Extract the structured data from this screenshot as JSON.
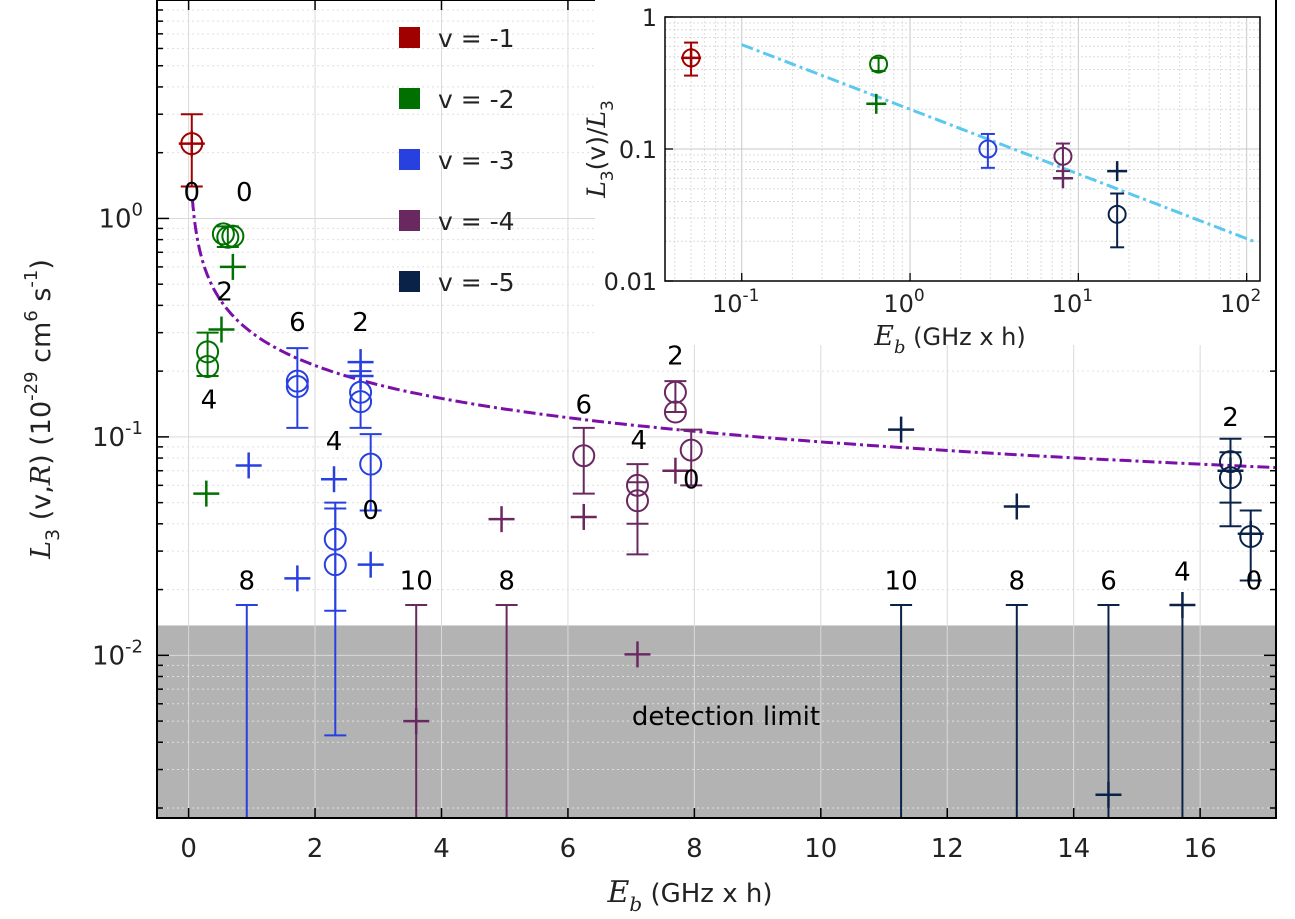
{
  "chart_data": [
    {
      "type": "scatter",
      "title": "",
      "xlabel": "E_b (GHz x h)",
      "ylabel": "L_3 (v,R) (10^-29 cm^6 s^-1)",
      "xlabel_parts": {
        "sym": "E",
        "sub": "b",
        "unit": "(GHz x h)"
      },
      "ylabel_parts": {
        "sym": "L",
        "sub": "3",
        "args": "(v,",
        "argR": "R",
        "argClose": ")",
        "unitA": "(10",
        "exp1": "-29",
        "unitB": "cm",
        "exp2": "6",
        "unitC": "s",
        "exp3": "-1",
        "unitD": ")"
      },
      "x_scale": "linear",
      "y_scale": "log",
      "xlim": [
        -0.5,
        17.2
      ],
      "ylim": [
        0.0018,
        10
      ],
      "x_ticks": [
        0,
        2,
        4,
        6,
        8,
        10,
        12,
        14,
        16
      ],
      "x_tick_labels": [
        "0",
        "2",
        "4",
        "6",
        "8",
        "10",
        "12",
        "14",
        "16"
      ],
      "y_ticks": [
        {
          "base": "10",
          "exp": "0",
          "value": 1
        },
        {
          "base": "10",
          "exp": "-1",
          "value": 0.1
        },
        {
          "base": "10",
          "exp": "-2",
          "value": 0.01
        }
      ],
      "grid": true,
      "legend": {
        "placement": "top-center",
        "entries": [
          {
            "label": "v = -1",
            "color": "#a00000"
          },
          {
            "label": "v = -2",
            "color": "#007000"
          },
          {
            "label": "v = -3",
            "color": "#2840e0"
          },
          {
            "label": "v = -4",
            "color": "#6a2860"
          },
          {
            "label": "v = -5",
            "color": "#0a2248"
          }
        ]
      },
      "shaded_region": {
        "label": "detection limit",
        "y_range": [
          0.0018,
          0.0137
        ],
        "color": "#b3b3b3"
      },
      "fit_curve": {
        "style": "dash-dot",
        "color": "#7a10a8",
        "y_at_1": 0.3,
        "exponent": -0.5,
        "x_range": [
          0.06,
          17.2
        ]
      },
      "series": [
        {
          "name": "v = -1",
          "color": "#a00000",
          "circles": [
            {
              "x": 0.05,
              "y": 2.2,
              "ylo": 1.4,
              "yhi": 3.0
            }
          ],
          "crosses": [
            {
              "x": 0.05,
              "y": 2.2
            }
          ]
        },
        {
          "name": "v = -2",
          "color": "#007000",
          "circles": [
            {
              "x": 0.62,
              "y": 0.82,
              "ylo": 0.74,
              "yhi": 0.92
            },
            {
              "x": 0.55,
              "y": 0.85
            },
            {
              "x": 0.7,
              "y": 0.83
            },
            {
              "x": 0.3,
              "y": 0.245,
              "ylo": 0.19,
              "yhi": 0.3
            },
            {
              "x": 0.3,
              "y": 0.21
            }
          ],
          "crosses": [
            {
              "x": 0.7,
              "y": 0.6
            },
            {
              "x": 0.52,
              "y": 0.31
            },
            {
              "x": 0.28,
              "y": 0.055
            }
          ]
        },
        {
          "name": "v = -3",
          "color": "#2840e0",
          "circles": [
            {
              "x": 1.72,
              "y": 0.17,
              "ylo": 0.11,
              "yhi": 0.255
            },
            {
              "x": 1.72,
              "y": 0.18
            },
            {
              "x": 2.72,
              "y": 0.16,
              "ylo": 0.11,
              "yhi": 0.2
            },
            {
              "x": 2.72,
              "y": 0.145
            },
            {
              "x": 2.88,
              "y": 0.075,
              "ylo": 0.046,
              "yhi": 0.103
            },
            {
              "x": 2.32,
              "y": 0.034,
              "ylo": 0.016,
              "yhi": 0.047
            },
            {
              "x": 2.32,
              "y": 0.026,
              "ylo": 0.0043,
              "yhi": 0.05
            },
            {
              "x": 0.92,
              "y": null,
              "ylo": 0.0018,
              "yhi": 0.017
            }
          ],
          "crosses": [
            {
              "x": 2.72,
              "y": 0.22
            },
            {
              "x": 2.72,
              "y": 0.19
            },
            {
              "x": 0.95,
              "y": 0.074
            },
            {
              "x": 2.3,
              "y": 0.064
            },
            {
              "x": 2.88,
              "y": 0.026
            },
            {
              "x": 1.72,
              "y": 0.0225
            }
          ]
        },
        {
          "name": "v = -4",
          "color": "#6a2860",
          "circles": [
            {
              "x": 7.7,
              "y": 0.16,
              "ylo": 0.13,
              "yhi": 0.18
            },
            {
              "x": 7.7,
              "y": 0.13
            },
            {
              "x": 7.95,
              "y": 0.087,
              "ylo": 0.06,
              "yhi": 0.108
            },
            {
              "x": 6.25,
              "y": 0.082,
              "ylo": 0.055,
              "yhi": 0.11
            },
            {
              "x": 7.1,
              "y": 0.06,
              "ylo": 0.04,
              "yhi": 0.075
            },
            {
              "x": 7.1,
              "y": 0.051,
              "ylo": 0.029,
              "yhi": 0.062
            },
            {
              "x": 3.6,
              "y": null,
              "ylo": 0.0018,
              "yhi": 0.017
            },
            {
              "x": 5.03,
              "y": null,
              "ylo": 0.0018,
              "yhi": 0.017
            }
          ],
          "crosses": [
            {
              "x": 7.7,
              "y": 0.07
            },
            {
              "x": 6.25,
              "y": 0.043
            },
            {
              "x": 4.95,
              "y": 0.042
            },
            {
              "x": 7.1,
              "y": 0.0101
            },
            {
              "x": 3.6,
              "y": 0.005
            }
          ]
        },
        {
          "name": "v = -5",
          "color": "#0a2248",
          "circles": [
            {
              "x": 16.48,
              "y": 0.077,
              "ylo": 0.05,
              "yhi": 0.098
            },
            {
              "x": 16.48,
              "y": 0.065,
              "ylo": 0.039,
              "yhi": 0.085
            },
            {
              "x": 16.8,
              "y": 0.035,
              "ylo": 0.022,
              "yhi": 0.046
            },
            {
              "x": 11.27,
              "y": null,
              "ylo": 0.0018,
              "yhi": 0.017
            },
            {
              "x": 13.1,
              "y": null,
              "ylo": 0.0018,
              "yhi": 0.017
            },
            {
              "x": 14.55,
              "y": null,
              "ylo": 0.0018,
              "yhi": 0.017
            },
            {
              "x": 15.72,
              "y": null,
              "ylo": 0.0018,
              "yhi": 0.017
            }
          ],
          "crosses": [
            {
              "x": 11.27,
              "y": 0.108
            },
            {
              "x": 16.48,
              "y": 0.07
            },
            {
              "x": 13.1,
              "y": 0.048
            },
            {
              "x": 16.8,
              "y": 0.036
            },
            {
              "x": 15.72,
              "y": 0.017
            },
            {
              "x": 14.55,
              "y": 0.0023
            }
          ]
        }
      ],
      "annotations": [
        {
          "text": "0",
          "x": 0.05,
          "y": 1.2,
          "color": "#000000"
        },
        {
          "text": "0",
          "x": 0.88,
          "y": 1.2,
          "color": "#000000"
        },
        {
          "text": "2",
          "x": 0.57,
          "y": 0.42,
          "color": "#000000"
        },
        {
          "text": "4",
          "x": 0.32,
          "y": 0.135,
          "color": "#000000"
        },
        {
          "text": "6",
          "x": 1.72,
          "y": 0.305,
          "color": "#000000"
        },
        {
          "text": "2",
          "x": 2.72,
          "y": 0.305,
          "color": "#000000"
        },
        {
          "text": "4",
          "x": 2.3,
          "y": 0.087,
          "color": "#000000"
        },
        {
          "text": "0",
          "x": 2.88,
          "y": 0.042,
          "color": "#000000"
        },
        {
          "text": "8",
          "x": 0.92,
          "y": 0.02,
          "color": "#000000"
        },
        {
          "text": "10",
          "x": 3.6,
          "y": 0.02,
          "color": "#000000"
        },
        {
          "text": "8",
          "x": 5.03,
          "y": 0.02,
          "color": "#000000"
        },
        {
          "text": "6",
          "x": 6.25,
          "y": 0.128,
          "color": "#000000"
        },
        {
          "text": "4",
          "x": 7.12,
          "y": 0.088,
          "color": "#000000"
        },
        {
          "text": "2",
          "x": 7.7,
          "y": 0.215,
          "color": "#000000"
        },
        {
          "text": "0",
          "x": 7.95,
          "y": 0.058,
          "color": "#000000"
        },
        {
          "text": "10",
          "x": 11.27,
          "y": 0.02,
          "color": "#000000"
        },
        {
          "text": "8",
          "x": 13.1,
          "y": 0.02,
          "color": "#000000"
        },
        {
          "text": "6",
          "x": 14.55,
          "y": 0.02,
          "color": "#000000"
        },
        {
          "text": "4",
          "x": 15.72,
          "y": 0.022,
          "color": "#000000"
        },
        {
          "text": "2",
          "x": 16.48,
          "y": 0.112,
          "color": "#000000"
        },
        {
          "text": "0",
          "x": 16.85,
          "y": 0.02,
          "color": "#000000"
        },
        {
          "text": "detection limit",
          "x": 8.5,
          "y": 0.0048,
          "color": "#000000"
        }
      ]
    },
    {
      "type": "scatter",
      "title": "",
      "xlabel": "E_b (GHz x h)",
      "ylabel": "L_3(v)/L_3",
      "xlabel_parts": {
        "sym": "E",
        "sub": "b",
        "unit": "(GHz x h)"
      },
      "ylabel_parts": {
        "sym": "L",
        "sub": "3",
        "mid": "(v)/",
        "sym2": "L",
        "sub2": "3"
      },
      "x_scale": "log",
      "y_scale": "log",
      "xlim": [
        0.035,
        120
      ],
      "ylim": [
        0.01,
        1
      ],
      "x_ticks": [
        {
          "base": "10",
          "exp": "-1",
          "value": 0.1
        },
        {
          "base": "10",
          "exp": "0",
          "value": 1
        },
        {
          "base": "10",
          "exp": "1",
          "value": 10
        },
        {
          "base": "10",
          "exp": "2",
          "value": 100
        }
      ],
      "y_ticks": [
        {
          "label": "1",
          "value": 1
        },
        {
          "label": "0.1",
          "value": 0.1
        },
        {
          "label": "0.01",
          "value": 0.01
        }
      ],
      "grid": true,
      "fit_curve": {
        "style": "dash-dot",
        "color": "#5bc8f0",
        "y_at_1": 0.2,
        "exponent": -0.49,
        "x_range": [
          0.1,
          110
        ]
      },
      "series": [
        {
          "name": "v = -1",
          "color": "#a00000",
          "circles": [
            {
              "x": 0.05,
              "y": 0.49,
              "ylo": 0.36,
              "yhi": 0.64
            }
          ],
          "crosses": [
            {
              "x": 0.05,
              "y": 0.49
            }
          ]
        },
        {
          "name": "v = -2",
          "color": "#007000",
          "circles": [
            {
              "x": 0.65,
              "y": 0.44,
              "ylo": 0.39,
              "yhi": 0.49
            }
          ],
          "crosses": [
            {
              "x": 0.63,
              "y": 0.22
            }
          ]
        },
        {
          "name": "v = -3",
          "color": "#2840e0",
          "circles": [
            {
              "x": 2.9,
              "y": 0.1,
              "ylo": 0.072,
              "yhi": 0.13
            }
          ],
          "crosses": []
        },
        {
          "name": "v = -4",
          "color": "#6a2860",
          "circles": [
            {
              "x": 8.1,
              "y": 0.088,
              "ylo": 0.068,
              "yhi": 0.11
            }
          ],
          "crosses": [
            {
              "x": 8.1,
              "y": 0.06
            }
          ]
        },
        {
          "name": "v = -5",
          "color": "#0a2248",
          "circles": [
            {
              "x": 17,
              "y": 0.032,
              "ylo": 0.018,
              "yhi": 0.046
            }
          ],
          "crosses": [
            {
              "x": 17,
              "y": 0.068
            }
          ]
        }
      ]
    }
  ]
}
